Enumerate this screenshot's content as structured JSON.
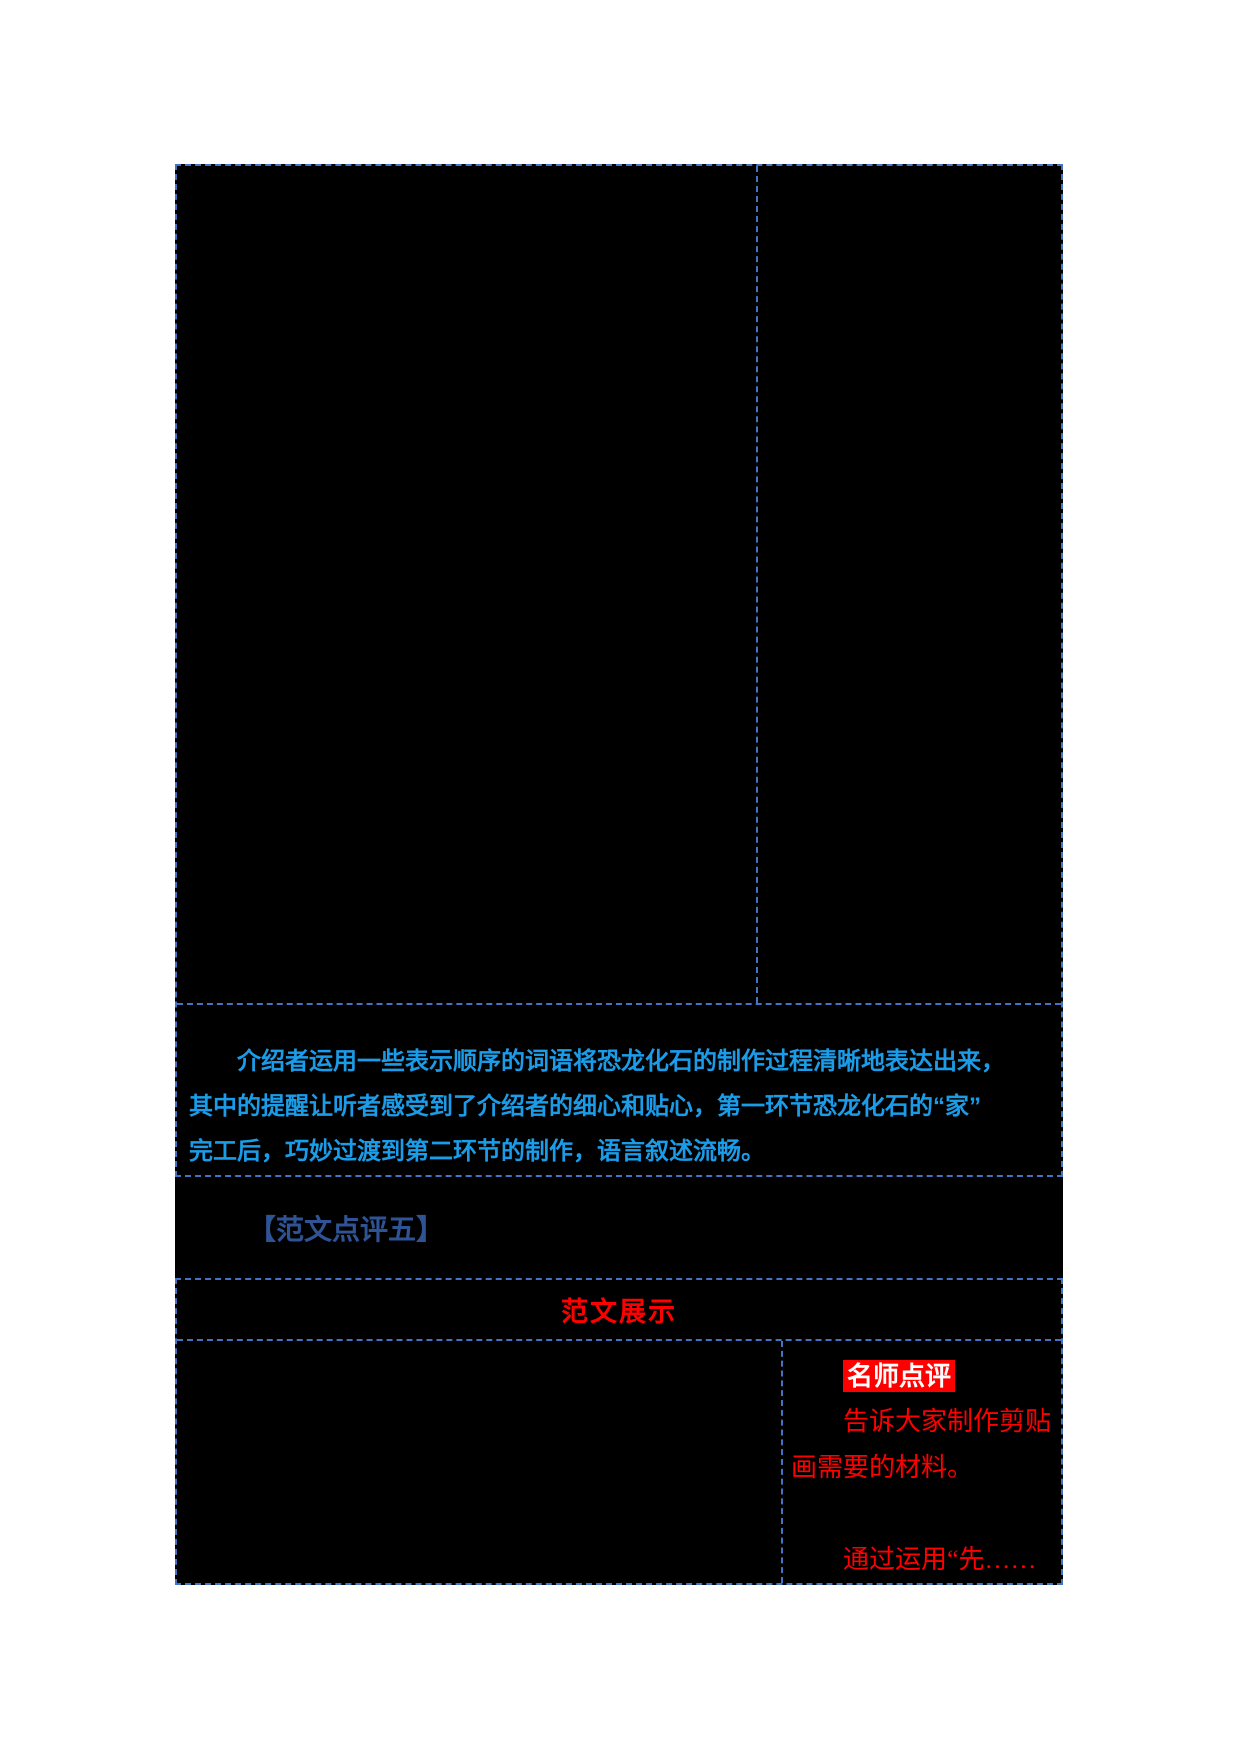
{
  "page": {
    "background": "#FFFFFF",
    "content_background": "#000000",
    "border_color": "#4472C4",
    "border_style": "dash-dot"
  },
  "table1": {
    "photo_row": {
      "left_cell_content": "",
      "right_cell_content": ""
    },
    "comment": {
      "color": "#1B9CE8",
      "lines": [
        "介绍者运用一些表示顺序的词语将恐龙化石的制作过程清晰地表达出来，",
        "其中的提醒让听者感受到了介绍者的细心和贴心，第一环节恐龙化石的“家”",
        "完工后，巧妙过渡到第二环节的制作，语言叙述流畅。"
      ]
    }
  },
  "section_heading": {
    "text": "【范文点评五】",
    "color": "#2F5496"
  },
  "table2": {
    "banner": {
      "text": "范文展示",
      "color": "#FF0000"
    },
    "essay_cell_content": "",
    "review": {
      "badge": {
        "text": "名师点评",
        "background": "#FF0000",
        "color": "#FFFFFF"
      },
      "color": "#FF0000",
      "lines": [
        "告诉大家制作剪贴",
        "画需要的材料。",
        "",
        "通过运用“先……"
      ]
    }
  }
}
